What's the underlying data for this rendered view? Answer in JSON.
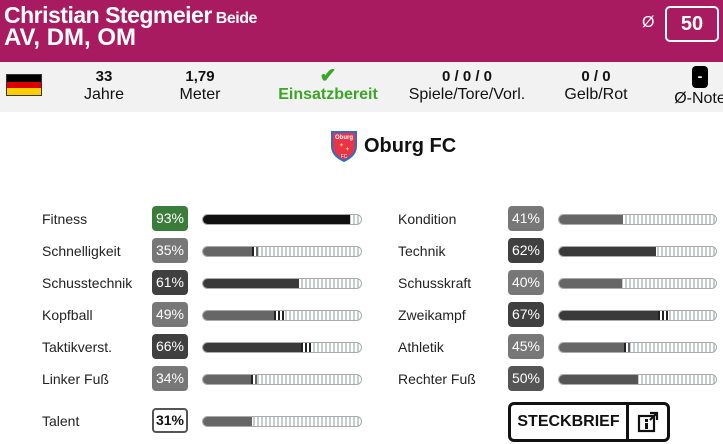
{
  "player": {
    "name": "Christian Stegmeier",
    "foot": "Beide",
    "positions": "AV, DM, OM",
    "avg_symbol": "Ø",
    "avg_value": "50"
  },
  "stats": {
    "flag": "germany-flag",
    "age": "33",
    "age_label": "Jahre",
    "height": "1,79",
    "height_label": "Meter",
    "status": "Einsatzbereit",
    "status_color": "#3aa626",
    "games": "0 / 0 / 0",
    "games_label": "Spiele/Tore/Vorl.",
    "cards": "0 / 0",
    "cards_label": "Gelb/Rot",
    "note": "-",
    "note_label": "Ø-Note"
  },
  "club": {
    "name": "Oburg FC",
    "crest_text": "Oburg"
  },
  "attributes_left": [
    {
      "label": "Fitness",
      "value": "93%",
      "pct": 93,
      "tier": "top",
      "marker": false
    },
    {
      "label": "Schnelligkeit",
      "value": "35%",
      "pct": 35,
      "tier": "low",
      "marker": true
    },
    {
      "label": "Schusstechnik",
      "value": "61%",
      "pct": 61,
      "tier": "high",
      "marker": false
    },
    {
      "label": "Kopfball",
      "value": "49%",
      "pct": 49,
      "tier": "low",
      "marker": true
    },
    {
      "label": "Taktikverst.",
      "value": "66%",
      "pct": 66,
      "tier": "high",
      "marker": true
    },
    {
      "label": "Linker Fuß",
      "value": "34%",
      "pct": 34,
      "tier": "low",
      "marker": true
    }
  ],
  "attributes_right": [
    {
      "label": "Kondition",
      "value": "41%",
      "pct": 41,
      "tier": "low",
      "marker": false
    },
    {
      "label": "Technik",
      "value": "62%",
      "pct": 62,
      "tier": "high",
      "marker": false
    },
    {
      "label": "Schusskraft",
      "value": "40%",
      "pct": 40,
      "tier": "low",
      "marker": false
    },
    {
      "label": "Zweikampf",
      "value": "67%",
      "pct": 67,
      "tier": "high",
      "marker": true
    },
    {
      "label": "Athletik",
      "value": "45%",
      "pct": 45,
      "tier": "low",
      "marker": true
    },
    {
      "label": "Rechter Fuß",
      "value": "50%",
      "pct": 50,
      "tier": "mid",
      "marker": false
    }
  ],
  "talent": {
    "label": "Talent",
    "value": "31%",
    "pct": 31
  },
  "button": {
    "label": "STECKBRIEF",
    "icon": "info-external-icon"
  },
  "colors": {
    "header": "#a91b60",
    "top": "#3a7d3a",
    "high": "#404040",
    "mid": "#555555",
    "low": "#777777"
  }
}
